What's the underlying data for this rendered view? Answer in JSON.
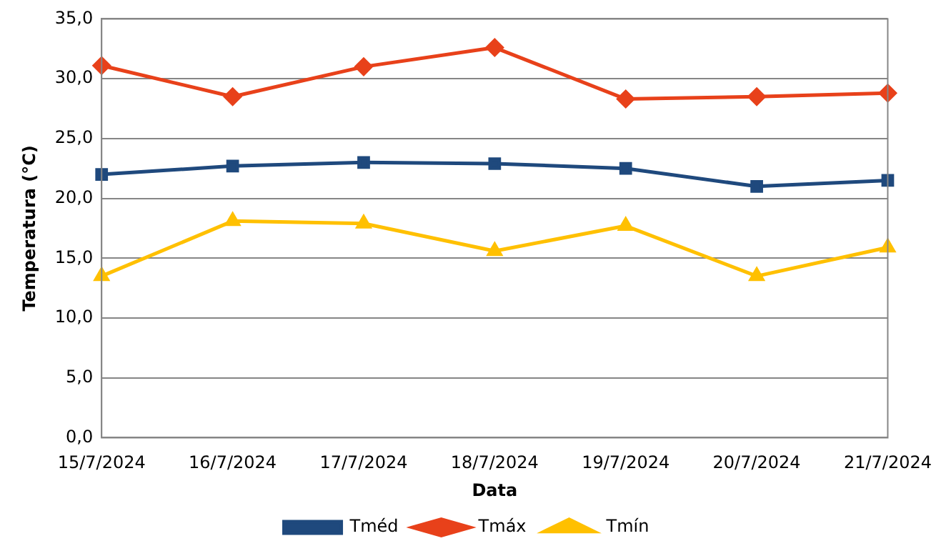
{
  "chart_data": {
    "type": "line",
    "xlabel": "Data",
    "ylabel": "Temperatura (°C)",
    "categories": [
      "15/7/2024",
      "16/7/2024",
      "17/7/2024",
      "18/7/2024",
      "19/7/2024",
      "20/7/2024",
      "21/7/2024"
    ],
    "series": [
      {
        "name": "Tméd",
        "color": "#1f497d",
        "marker": "square",
        "values": [
          22.0,
          22.7,
          23.0,
          22.9,
          22.5,
          21.0,
          21.5
        ]
      },
      {
        "name": "Tmáx",
        "color": "#e8411a",
        "marker": "diamond",
        "values": [
          31.1,
          28.5,
          31.0,
          32.6,
          28.3,
          28.5,
          28.8
        ]
      },
      {
        "name": "Tmín",
        "color": "#ffc000",
        "marker": "triangle",
        "values": [
          13.5,
          18.1,
          17.9,
          15.6,
          17.7,
          13.5,
          15.9
        ]
      }
    ],
    "ylim": [
      0,
      35
    ],
    "yticks": [
      {
        "value": 0,
        "label": "0,0"
      },
      {
        "value": 5,
        "label": "5,0"
      },
      {
        "value": 10,
        "label": "10,0"
      },
      {
        "value": 15,
        "label": "15,0"
      },
      {
        "value": 20,
        "label": "20,0"
      },
      {
        "value": 25,
        "label": "25,0"
      },
      {
        "value": 30,
        "label": "30,0"
      },
      {
        "value": 35,
        "label": "35,0"
      }
    ],
    "grid": "y",
    "legend": "bottom",
    "line_style": "solid"
  }
}
